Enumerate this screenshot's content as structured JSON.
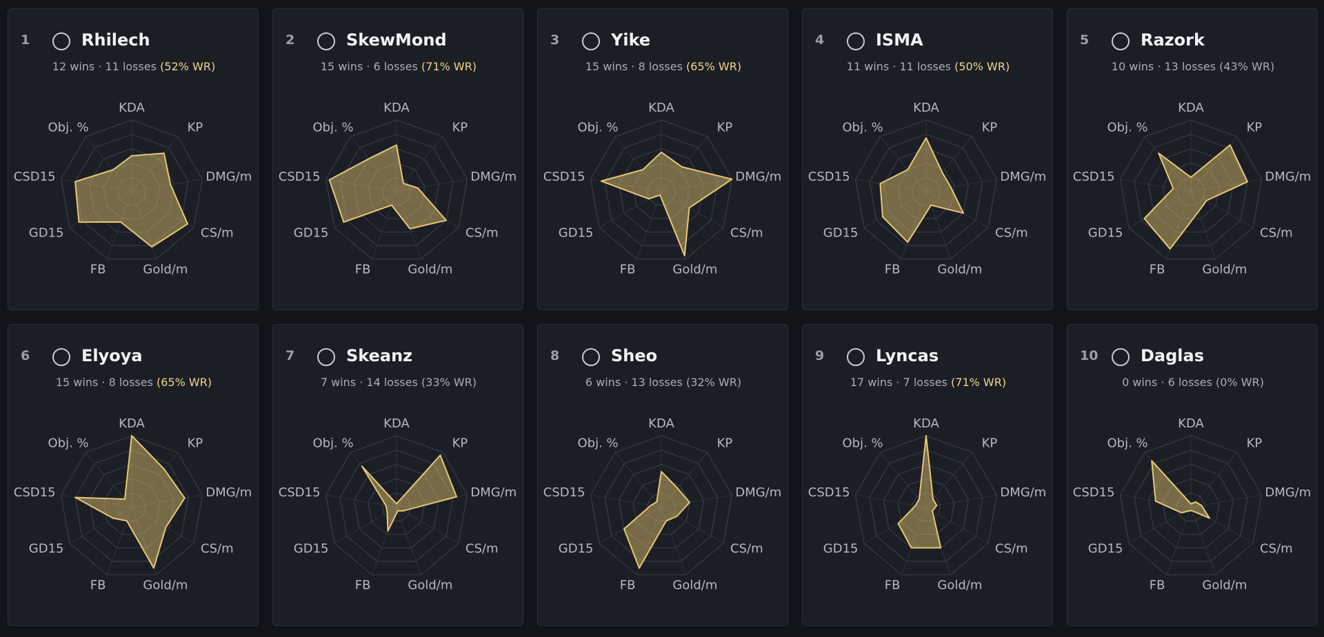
{
  "chart_data": [
    {
      "type": "radar",
      "rank": 1,
      "title": "Rhilech",
      "subtitle": "12 wins · 11 losses",
      "wr_label": "(52% WR)",
      "wr_color": "#f3d48a",
      "axes": [
        "KDA",
        "KP",
        "DMG/m",
        "CS/m",
        "Gold/m",
        "FB",
        "GD15",
        "CSD15",
        "Obj. %"
      ],
      "values": [
        50,
        70,
        55,
        90,
        82,
        45,
        85,
        80,
        40
      ],
      "color": "#e8c872",
      "ylim": [
        0,
        100
      ],
      "yticks": [
        20,
        40,
        60,
        80,
        100
      ],
      "grid": true
    },
    {
      "type": "radar",
      "rank": 2,
      "title": "SkewMond",
      "subtitle": "15 wins · 6 losses",
      "wr_label": "(71% WR)",
      "wr_color": "#f3d48a",
      "axes": [
        "KDA",
        "KP",
        "DMG/m",
        "CS/m",
        "Gold/m",
        "FB",
        "GD15",
        "CSD15",
        "Obj. %"
      ],
      "values": [
        65,
        15,
        30,
        80,
        55,
        20,
        85,
        95,
        60
      ],
      "color": "#e8c872",
      "ylim": [
        0,
        100
      ],
      "yticks": [
        20,
        40,
        60,
        80,
        100
      ],
      "grid": true
    },
    {
      "type": "radar",
      "rank": 3,
      "title": "Yike",
      "subtitle": "15 wins · 8 losses",
      "wr_label": "(65% WR)",
      "wr_color": "#f3d48a",
      "axes": [
        "KDA",
        "KP",
        "DMG/m",
        "CS/m",
        "Gold/m",
        "FB",
        "GD15",
        "CSD15",
        "Obj. %"
      ],
      "values": [
        55,
        45,
        100,
        45,
        95,
        5,
        20,
        85,
        40
      ],
      "color": "#e8c872",
      "ylim": [
        0,
        100
      ],
      "yticks": [
        20,
        40,
        60,
        80,
        100
      ],
      "grid": true
    },
    {
      "type": "radar",
      "rank": 4,
      "title": "ISMA",
      "subtitle": "11 wins · 11 losses",
      "wr_label": "(50% WR)",
      "wr_color": "#f3d48a",
      "axes": [
        "KDA",
        "KP",
        "DMG/m",
        "CS/m",
        "Gold/m",
        "FB",
        "GD15",
        "CSD15",
        "Obj. %"
      ],
      "values": [
        75,
        35,
        35,
        60,
        20,
        75,
        70,
        65,
        40
      ],
      "color": "#e8c872",
      "ylim": [
        0,
        100
      ],
      "yticks": [
        20,
        40,
        60,
        80,
        100
      ],
      "grid": true
    },
    {
      "type": "radar",
      "rank": 5,
      "title": "Razork",
      "subtitle": "10 wins · 13 losses",
      "wr_label": "(43% WR)",
      "wr_color": "#a9aeb8",
      "axes": [
        "KDA",
        "KP",
        "DMG/m",
        "CS/m",
        "Gold/m",
        "FB",
        "GD15",
        "CSD15",
        "Obj. %"
      ],
      "values": [
        20,
        85,
        80,
        25,
        30,
        85,
        75,
        25,
        70
      ],
      "color": "#e8c872",
      "ylim": [
        0,
        100
      ],
      "yticks": [
        20,
        40,
        60,
        80,
        100
      ],
      "grid": true
    },
    {
      "type": "radar",
      "rank": 6,
      "title": "Elyoya",
      "subtitle": "15 wins · 8 losses",
      "wr_label": "(65% WR)",
      "wr_color": "#f3d48a",
      "axes": [
        "KDA",
        "KP",
        "DMG/m",
        "CS/m",
        "Gold/m",
        "FB",
        "GD15",
        "CSD15",
        "Obj. %"
      ],
      "values": [
        100,
        70,
        75,
        55,
        90,
        20,
        30,
        80,
        15
      ],
      "color": "#e8c872",
      "ylim": [
        0,
        100
      ],
      "yticks": [
        20,
        40,
        60,
        80,
        100
      ],
      "grid": true
    },
    {
      "type": "radar",
      "rank": 7,
      "title": "Skeanz",
      "subtitle": "7 wins · 14 losses",
      "wr_label": "(33% WR)",
      "wr_color": "#a9aeb8",
      "axes": [
        "KDA",
        "KP",
        "DMG/m",
        "CS/m",
        "Gold/m",
        "FB",
        "GD15",
        "CSD15",
        "Obj. %"
      ],
      "values": [
        5,
        95,
        85,
        10,
        5,
        35,
        15,
        15,
        75
      ],
      "color": "#e8c872",
      "ylim": [
        0,
        100
      ],
      "yticks": [
        20,
        40,
        60,
        80,
        100
      ],
      "grid": true
    },
    {
      "type": "radar",
      "rank": 8,
      "title": "Sheo",
      "subtitle": "6 wins · 13 losses",
      "wr_label": "(32% WR)",
      "wr_color": "#a9aeb8",
      "axes": [
        "KDA",
        "KP",
        "DMG/m",
        "CS/m",
        "Gold/m",
        "FB",
        "GD15",
        "CSD15",
        "Obj. %"
      ],
      "values": [
        50,
        35,
        40,
        25,
        20,
        90,
        60,
        15,
        10
      ],
      "color": "#e8c872",
      "ylim": [
        0,
        100
      ],
      "yticks": [
        20,
        40,
        60,
        80,
        100
      ],
      "grid": true
    },
    {
      "type": "radar",
      "rank": 9,
      "title": "Lyncas",
      "subtitle": "17 wins · 7 losses",
      "wr_label": "(71% WR)",
      "wr_color": "#f3d48a",
      "axes": [
        "KDA",
        "KP",
        "DMG/m",
        "CS/m",
        "Gold/m",
        "FB",
        "GD15",
        "CSD15",
        "Obj. %"
      ],
      "values": [
        100,
        15,
        15,
        10,
        60,
        60,
        45,
        15,
        15
      ],
      "color": "#e8c872",
      "ylim": [
        0,
        100
      ],
      "yticks": [
        20,
        40,
        60,
        80,
        100
      ],
      "grid": true
    },
    {
      "type": "radar",
      "rank": 10,
      "title": "Daglas",
      "subtitle": "0 wins · 6 losses",
      "wr_label": "(0% WR)",
      "wr_color": "#a9aeb8",
      "axes": [
        "KDA",
        "KP",
        "DMG/m",
        "CS/m",
        "Gold/m",
        "FB",
        "GD15",
        "CSD15",
        "Obj. %"
      ],
      "values": [
        5,
        10,
        15,
        30,
        5,
        5,
        15,
        50,
        85
      ],
      "color": "#e8c872",
      "ylim": [
        0,
        100
      ],
      "yticks": [
        20,
        40,
        60,
        80,
        100
      ],
      "grid": true
    }
  ]
}
